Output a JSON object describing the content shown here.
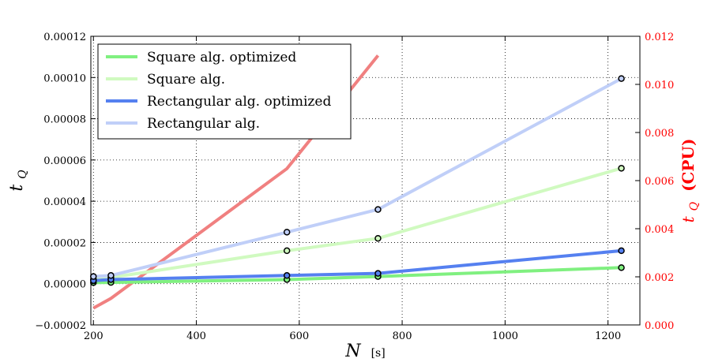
{
  "chart_data": {
    "type": "line",
    "xlabel": "N",
    "xlabel_unit": "[s]",
    "ylabel": "t",
    "ylabel_sub": "Q",
    "ylabel_right": "t",
    "ylabel_right_sub": "Q",
    "ylabel_right_suffix": "(CPU)",
    "xlim": [
      195,
      1262
    ],
    "ylim": [
      -2e-05,
      0.00012
    ],
    "ylim_right": [
      0.0,
      0.012
    ],
    "xticks": [
      200,
      400,
      600,
      800,
      1000,
      1200
    ],
    "xtick_labels": [
      "200",
      "400",
      "600",
      "800",
      "1000",
      "1200"
    ],
    "yticks": [
      -2e-05,
      0,
      2e-05,
      4e-05,
      6e-05,
      8e-05,
      0.0001,
      0.00012
    ],
    "ytick_labels": [
      "−0.00002",
      "0.00000",
      "0.00002",
      "0.00004",
      "0.00006",
      "0.00008",
      "0.00010",
      "0.00012"
    ],
    "yticks_right": [
      0.0,
      0.002,
      0.004,
      0.006,
      0.008,
      0.01,
      0.012
    ],
    "ytick_labels_right": [
      "0.000",
      "0.002",
      "0.004",
      "0.006",
      "0.008",
      "0.010",
      "0.012"
    ],
    "grid": true,
    "legend_position": "top-left",
    "series": [
      {
        "name": "Square alg. optimized",
        "color": "#80f080",
        "axis": "left",
        "x": [
          200,
          234,
          576,
          753,
          1226
        ],
        "y": [
          5e-07,
          6e-07,
          2e-06,
          3.5e-06,
          7.8e-06
        ],
        "markers": true
      },
      {
        "name": "Square alg.",
        "color": "#d0fac0",
        "axis": "left",
        "x": [
          200,
          234,
          576,
          753,
          1226
        ],
        "y": [
          2e-06,
          3e-06,
          1.6e-05,
          2.2e-05,
          5.6e-05
        ],
        "markers": true
      },
      {
        "name": "Rectangular alg. optimized",
        "color": "#5580f0",
        "axis": "left",
        "x": [
          200,
          234,
          576,
          753,
          1226
        ],
        "y": [
          1.5e-06,
          2e-06,
          4e-06,
          5e-06,
          1.6e-05
        ],
        "markers": true
      },
      {
        "name": "Rectangular alg.",
        "color": "#c0cff8",
        "axis": "left",
        "x": [
          200,
          234,
          576,
          753,
          1226
        ],
        "y": [
          3.5e-06,
          4e-06,
          2.5e-05,
          3.6e-05,
          9.95e-05
        ],
        "markers": true
      },
      {
        "color": "#f08080",
        "axis": "right",
        "x": [
          200,
          234,
          576,
          753
        ],
        "y": [
          0.0007,
          0.0011,
          0.0065,
          0.0112
        ],
        "markers": false
      }
    ]
  }
}
